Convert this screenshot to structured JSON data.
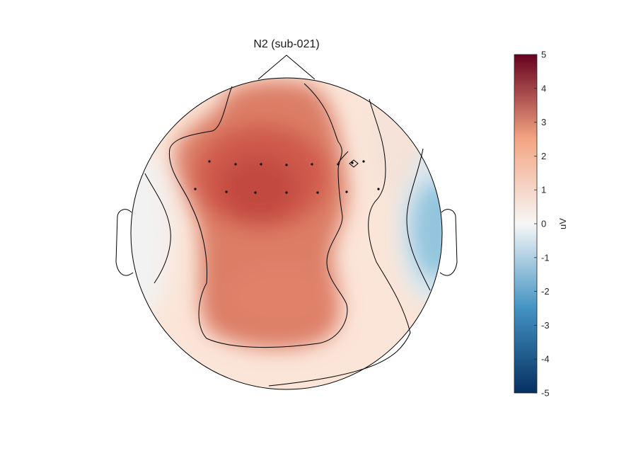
{
  "chart_data": {
    "type": "heatmap",
    "subtype": "topographic-scalp-map",
    "title": "N2 (sub-021)",
    "colorbar": {
      "label": "uV",
      "min": -5,
      "max": 5,
      "ticks": [
        -5,
        -4,
        -3,
        -2,
        -1,
        0,
        1,
        2,
        3,
        4,
        5
      ],
      "colormap": "red-white-blue (diverging)",
      "colors": {
        "neg_max": "#053061",
        "neg_mid": "#4393c3",
        "zero": "#f7f7f7",
        "pos_mid": "#f4a582",
        "pos_max": "#67001f"
      }
    },
    "approx_field": {
      "note_values_in_uV": true,
      "frontal_central_peak": 3.6,
      "central_region": 2.6,
      "posterior_region": 2.4,
      "left_temporal": 0.2,
      "right_temporal_min": -1.8,
      "right_frontal": 0.6
    },
    "contour_levels_uV": [
      0,
      1.2,
      2.4
    ],
    "electrodes_visible": 15,
    "legend": "colorbar-right",
    "grid": false
  },
  "colors": {
    "outline": "#000000",
    "text": "#262626",
    "background": "#ffffff"
  }
}
